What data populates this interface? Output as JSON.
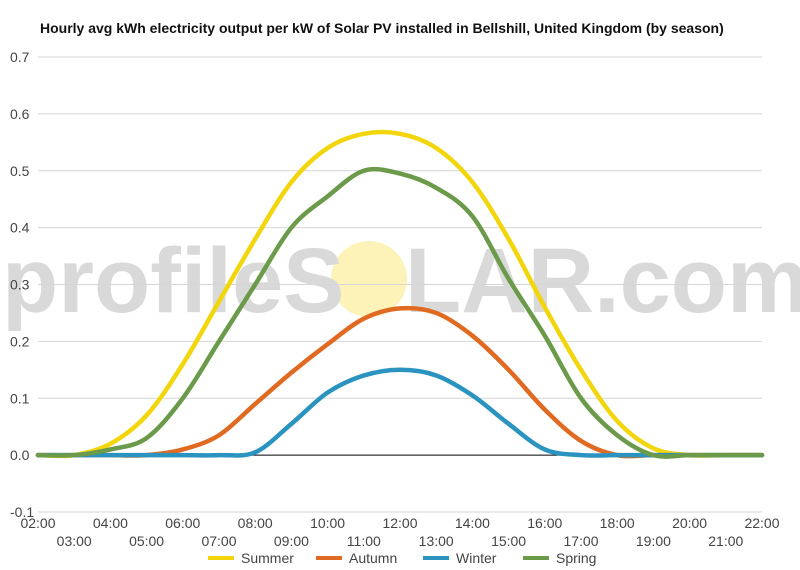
{
  "watermark": {
    "left": "profileS",
    "right": "LAR.com"
  },
  "chart_data": {
    "type": "line",
    "title": "Hourly avg kWh electricity output per kW of Solar PV installed in Bellshill, United Kingdom (by season)",
    "xlabel": "",
    "ylabel": "",
    "ylim": [
      -0.1,
      0.7
    ],
    "yticks": [
      "-0.1",
      "0.0",
      "0.1",
      "0.2",
      "0.3",
      "0.4",
      "0.5",
      "0.6",
      "0.7"
    ],
    "xlim": [
      2,
      22
    ],
    "xticks_top": [
      "02:00",
      "04:00",
      "06:00",
      "08:00",
      "10:00",
      "12:00",
      "14:00",
      "16:00",
      "18:00",
      "20:00",
      "22:00"
    ],
    "xticks_bottom": [
      "03:00",
      "05:00",
      "07:00",
      "09:00",
      "11:00",
      "13:00",
      "15:00",
      "17:00",
      "19:00",
      "21:00"
    ],
    "grid": true,
    "legend_position": "bottom",
    "x": [
      2,
      3,
      4,
      5,
      6,
      7,
      8,
      9,
      10,
      11,
      12,
      13,
      14,
      15,
      16,
      17,
      18,
      19,
      20,
      21,
      22
    ],
    "series": [
      {
        "name": "Summer",
        "color": "#f2d60b",
        "values": [
          0.0,
          0.0,
          0.02,
          0.07,
          0.16,
          0.27,
          0.38,
          0.48,
          0.54,
          0.565,
          0.565,
          0.54,
          0.48,
          0.38,
          0.26,
          0.15,
          0.06,
          0.012,
          0.0,
          0.0,
          0.0
        ]
      },
      {
        "name": "Autumn",
        "color": "#e06a22",
        "values": [
          0.0,
          0.0,
          0.0,
          0.0,
          0.01,
          0.035,
          0.09,
          0.145,
          0.195,
          0.24,
          0.258,
          0.25,
          0.21,
          0.15,
          0.08,
          0.025,
          0.0,
          0.0,
          0.0,
          0.0,
          0.0
        ]
      },
      {
        "name": "Winter",
        "color": "#2b93bf",
        "values": [
          0.0,
          0.0,
          0.0,
          0.0,
          0.0,
          0.0,
          0.005,
          0.055,
          0.11,
          0.14,
          0.15,
          0.14,
          0.105,
          0.055,
          0.01,
          0.0,
          0.0,
          0.0,
          0.0,
          0.0,
          0.0
        ]
      },
      {
        "name": "Spring",
        "color": "#6c9a4b",
        "values": [
          0.0,
          0.0,
          0.01,
          0.03,
          0.1,
          0.2,
          0.3,
          0.4,
          0.455,
          0.5,
          0.495,
          0.47,
          0.42,
          0.31,
          0.21,
          0.1,
          0.035,
          0.0,
          0.0,
          0.0,
          0.0
        ]
      }
    ]
  }
}
